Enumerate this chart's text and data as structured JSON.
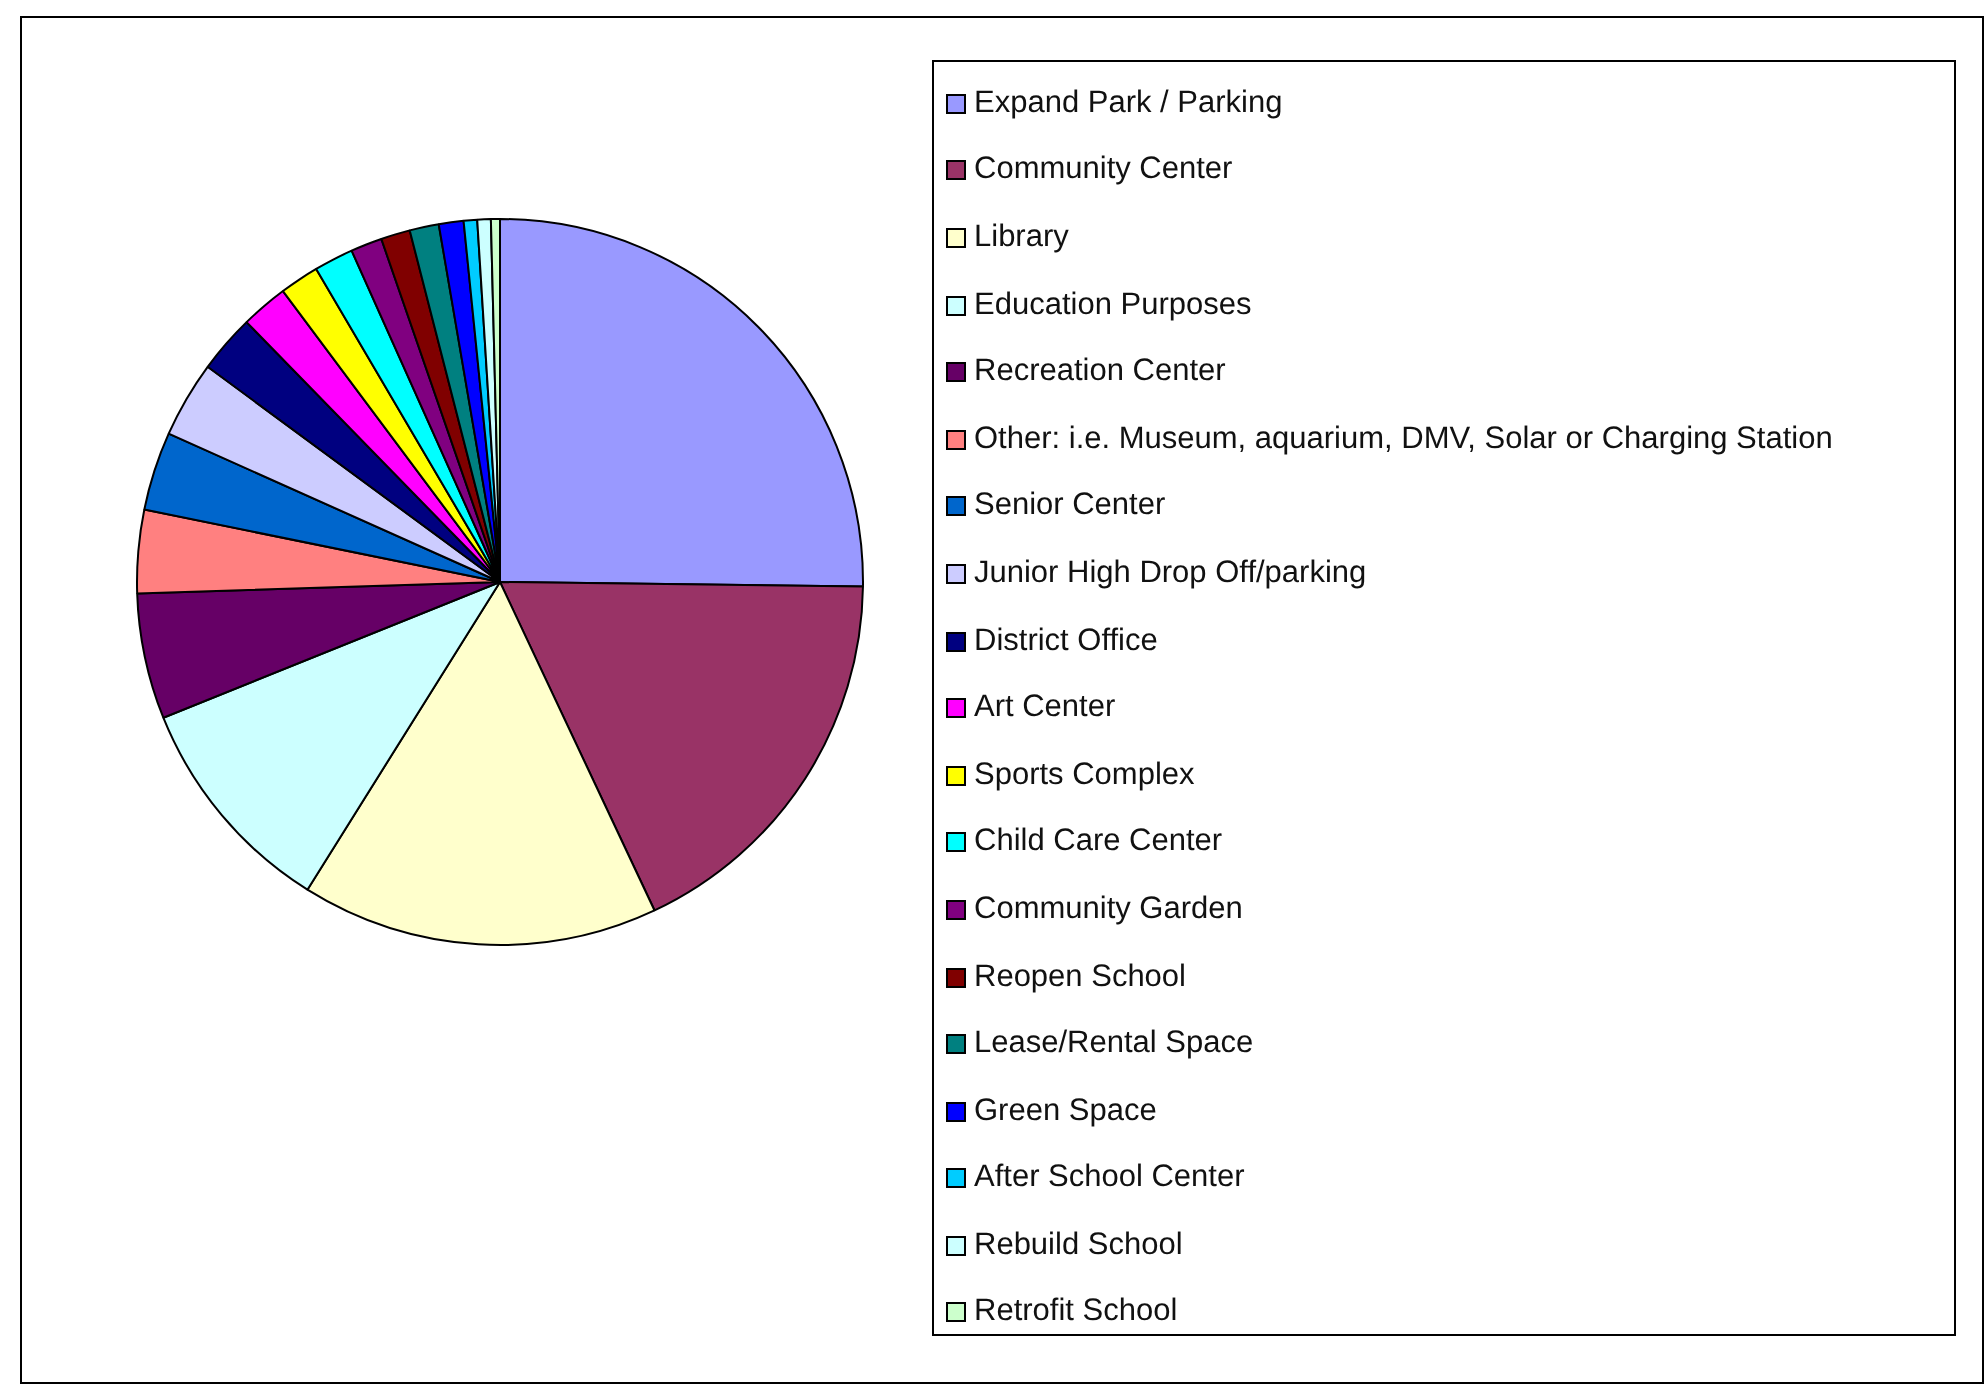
{
  "chart_data": {
    "type": "pie",
    "legend": "right",
    "categories": [
      "Expand Park / Parking",
      "Community Center",
      "Library",
      "Education Purposes",
      "Recreation Center",
      "Other: i.e. Museum, aquarium, DMV, Solar or Charging Station",
      "Senior Center",
      "Junior High Drop Off/parking",
      "District Office",
      "Art Center",
      "Sports Complex",
      "Child Care Center",
      "Community Garden",
      "Reopen School",
      "Lease/Rental Space",
      "Green Space",
      "After School Center",
      "Rebuild School",
      "Retrofit School"
    ],
    "values": [
      25.2,
      17.8,
      15.9,
      10,
      5.6,
      3.7,
      3.5,
      3.4,
      2.6,
      2.1,
      1.75,
      1.75,
      1.4,
      1.3,
      1.3,
      1.1,
      0.6,
      0.6,
      0.4
    ],
    "colors": [
      "#9999ff",
      "#993366",
      "#ffffcc",
      "#ccffff",
      "#660066",
      "#ff8080",
      "#0066cc",
      "#ccccff",
      "#000080",
      "#ff00ff",
      "#ffff00",
      "#00ffff",
      "#800080",
      "#800000",
      "#008080",
      "#0000ff",
      "#00ccff",
      "#ccffff",
      "#ccffcc"
    ]
  }
}
